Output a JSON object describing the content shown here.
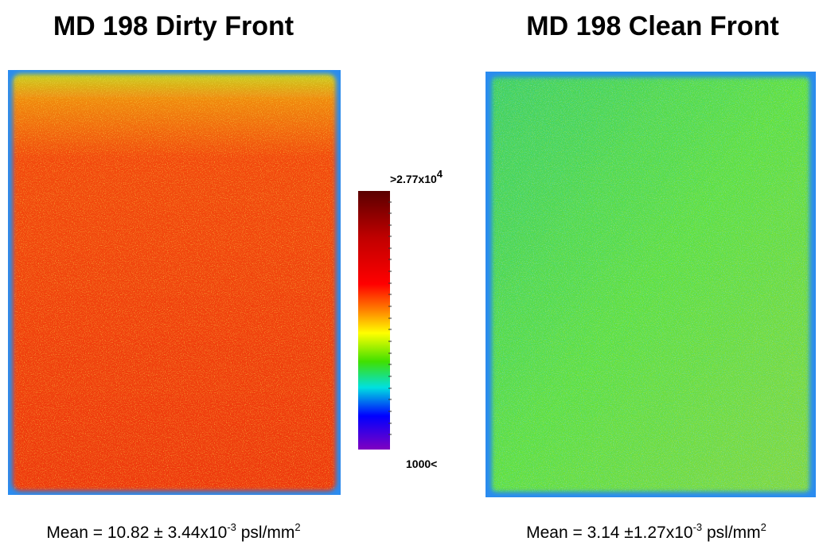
{
  "panels": [
    {
      "title": "MD 198 Dirty Front",
      "caption": {
        "text": "Mean = 10.82 ± 3.44x10",
        "exp": "-3",
        "unit": "psl/mm",
        "unit_exp": "2"
      }
    },
    {
      "title": "MD 198 Clean Front",
      "caption": {
        "text": "Mean = 3.14 ±1.27x10",
        "exp": "-3",
        "unit": "psl/mm",
        "unit_exp": "2"
      }
    }
  ],
  "colorbar": {
    "max_label": {
      "text": ">2.77x10",
      "exp": "4"
    },
    "min_label": "1000<"
  }
}
